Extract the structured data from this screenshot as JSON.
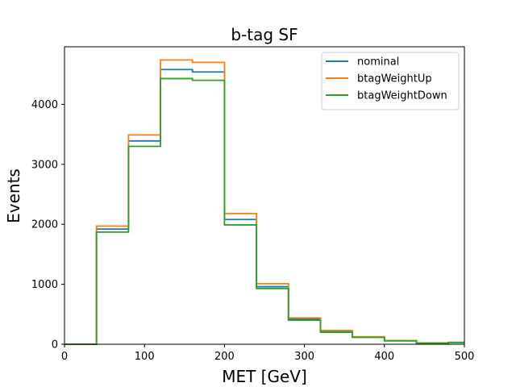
{
  "chart_data": {
    "type": "line",
    "title": "b-tag SF",
    "xlabel": "MET [GeV]",
    "ylabel": "Events",
    "xlim": [
      0,
      500
    ],
    "ylim": [
      0,
      4960
    ],
    "xticks": [
      0,
      100,
      200,
      300,
      400,
      500
    ],
    "yticks": [
      0,
      1000,
      2000,
      3000,
      4000
    ],
    "bin_edges": [
      0,
      40,
      80,
      120,
      160,
      200,
      240,
      280,
      320,
      360,
      400,
      440,
      480,
      500
    ],
    "grid": false,
    "legend_position": "top-right",
    "series": [
      {
        "name": "nominal",
        "color": "#1f77b4",
        "values": [
          0,
          1920,
          3390,
          4580,
          4540,
          2080,
          960,
          420,
          210,
          120,
          60,
          20,
          30
        ]
      },
      {
        "name": "btagWeightUp",
        "color": "#ff7f0e",
        "values": [
          0,
          1970,
          3490,
          4740,
          4700,
          2180,
          1010,
          440,
          230,
          125,
          62,
          24,
          32
        ]
      },
      {
        "name": "btagWeightDown",
        "color": "#2ca02c",
        "values": [
          0,
          1870,
          3300,
          4430,
          4400,
          1990,
          930,
          400,
          200,
          115,
          56,
          18,
          28
        ]
      }
    ]
  }
}
